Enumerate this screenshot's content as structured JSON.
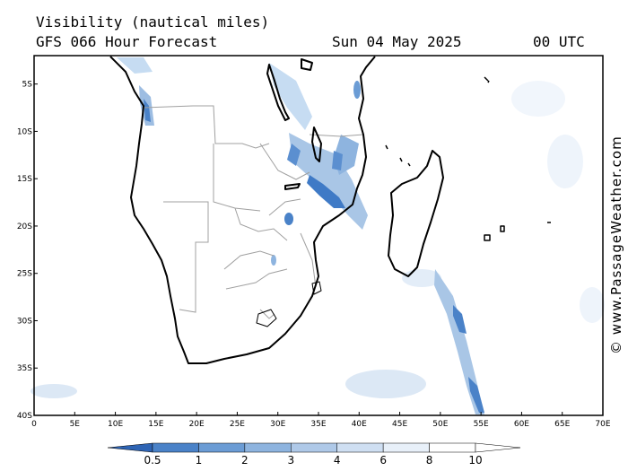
{
  "header": {
    "variable": "Visibility (nautical miles)",
    "model": "GFS 066 Hour Forecast",
    "date": "Sun 04 May 2025",
    "time": "00 UTC"
  },
  "map": {
    "region": "Southern Africa and Madagascar",
    "lon_range": [
      0,
      70
    ],
    "lat_range": [
      -40,
      -2
    ],
    "x_ticks": [
      "0",
      "5E",
      "10E",
      "15E",
      "20E",
      "25E",
      "30E",
      "35E",
      "40E",
      "45E",
      "50E",
      "55E",
      "60E",
      "65E",
      "70E"
    ],
    "y_ticks": [
      "5S",
      "10S",
      "15S",
      "20S",
      "25S",
      "30S",
      "35S",
      "40S"
    ],
    "colors": {
      "coastline": "#000000",
      "borders": "#a0a0a0",
      "low_vis": "#3f7ac6",
      "mid_vis": "#7ea9da",
      "high_vis": "#c6dcf2"
    }
  },
  "legend": {
    "labels": [
      "0.5",
      "1",
      "2",
      "3",
      "4",
      "6",
      "8",
      "10"
    ],
    "colors": [
      "#2e64b4",
      "#4a82c8",
      "#6b9cd5",
      "#8eb4df",
      "#afc9e8",
      "#cfdff2",
      "#e8f0f9",
      "#ffffff"
    ]
  },
  "watermark": "© www.PassageWeather.com"
}
